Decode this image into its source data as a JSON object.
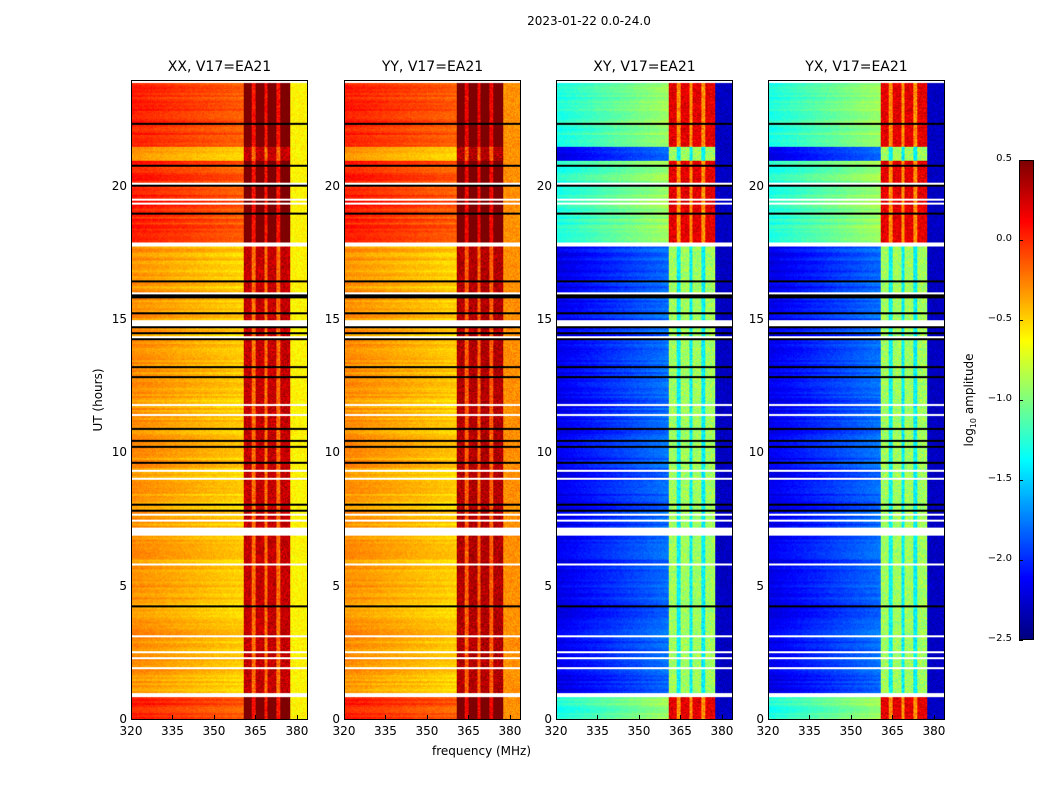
{
  "figure": {
    "suptitle": "2023-01-22 0.0-24.0",
    "xlabel": "frequency (MHz)",
    "ylabel": "UT (hours)"
  },
  "chart_data": {
    "type": "heatmap",
    "title": "2023-01-22 0.0-24.0",
    "xlabel": "frequency (MHz)",
    "ylabel": "UT (hours)",
    "xlim": [
      320,
      384
    ],
    "ylim": [
      0,
      24
    ],
    "xticks": [
      "320",
      "335",
      "350",
      "365",
      "380"
    ],
    "xtick_values": [
      320,
      335,
      350,
      365,
      380
    ],
    "yticks": [
      "0",
      "5",
      "10",
      "15",
      "20"
    ],
    "ytick_values": [
      0,
      5,
      10,
      15,
      20
    ],
    "colormap": "jet",
    "colorbar": {
      "label": "log10 amplitude",
      "range": [
        -2.5,
        0.5
      ],
      "ticks": [
        "0.5",
        "0.0",
        "−0.5",
        "−1.0",
        "−1.5",
        "−2.0",
        "−2.5"
      ],
      "tick_values": [
        0.5,
        0.0,
        -0.5,
        -1.0,
        -1.5,
        -2.0,
        -2.5
      ]
    },
    "panels": [
      {
        "title": "XX, V17=EA21",
        "base_level": -0.3,
        "band_level": 0.3,
        "high_edge_level": -0.6
      },
      {
        "title": "YY, V17=EA21",
        "base_level": -0.3,
        "band_level": 0.35,
        "high_edge_level": -0.3
      },
      {
        "title": "XY, V17=EA21",
        "base_level": -2.2,
        "band_level": -0.9,
        "high_edge_level": -2.3
      },
      {
        "title": "YX, V17=EA21",
        "base_level": -2.2,
        "band_level": -0.9,
        "high_edge_level": -2.3
      }
    ],
    "rfi_band_mhz": [
      361,
      378
    ],
    "rfi_notches_mhz": [
      364.5,
      369,
      373.5
    ],
    "flagged_gaps_hours": [
      [
        0.8,
        1.0
      ],
      [
        6.9,
        7.2
      ],
      [
        14.8,
        15.0
      ],
      [
        17.8,
        17.9
      ]
    ],
    "bright_epochs_hours": [
      [
        0.0,
        0.8
      ],
      [
        17.9,
        21.0
      ],
      [
        21.5,
        24.0
      ]
    ]
  }
}
